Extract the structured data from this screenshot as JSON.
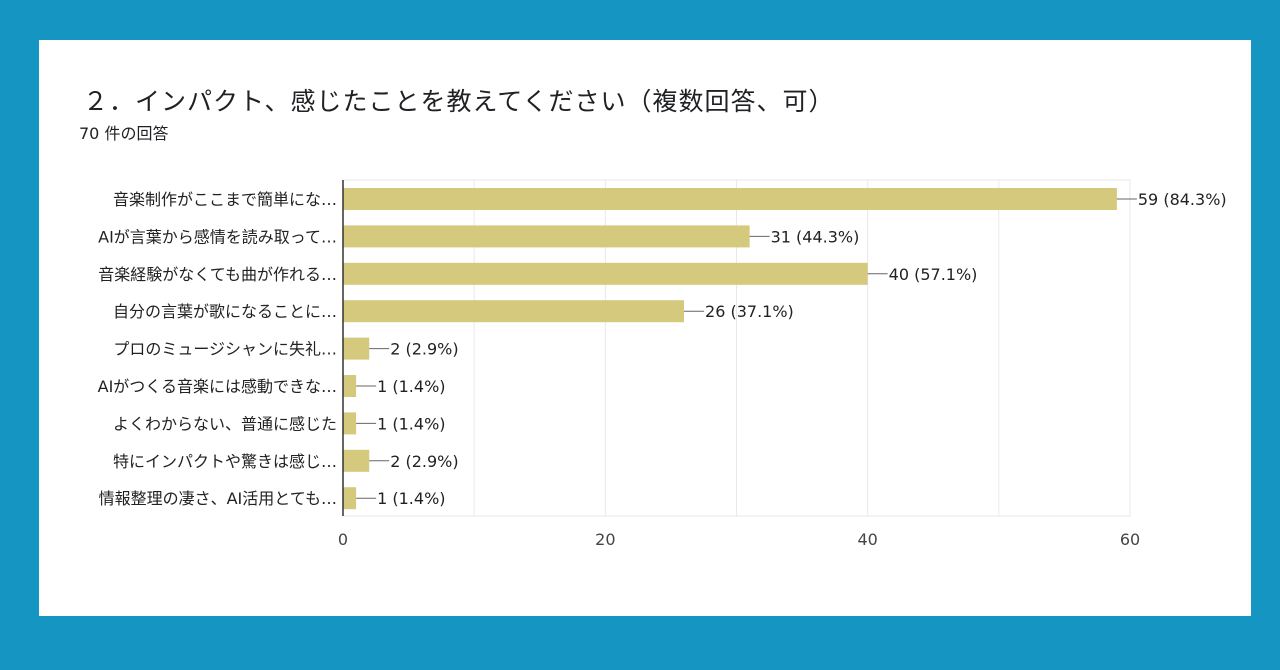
{
  "header": {
    "title": "２．インパクト、感じたことを教えてください（複数回答、可）",
    "response_count": "70 件の回答"
  },
  "colors": {
    "background": "#1595c1",
    "bar": "#d4c97c",
    "grid": "#e8e8e8",
    "axis": "#333333"
  },
  "chart_data": {
    "type": "bar",
    "orientation": "horizontal",
    "title": "２．インパクト、感じたことを教えてください（複数回答、可）",
    "categories": [
      "音楽制作がここまで簡単にな…",
      "AIが言葉から感情を読み取って…",
      "音楽経験がなくても曲が作れる…",
      "自分の言葉が歌になることに…",
      "プロのミュージシャンに失礼…",
      "AIがつくる音楽には感動できな…",
      "よくわからない、普通に感じた",
      "特にインパクトや驚きは感じ…",
      "情報整理の凄さ、AI活用とても…"
    ],
    "values": [
      59,
      31,
      40,
      26,
      2,
      1,
      1,
      2,
      1
    ],
    "data_labels": [
      "59 (84.3%)",
      "31 (44.3%)",
      "40 (57.1%)",
      "26 (37.1%)",
      "2 (2.9%)",
      "1 (1.4%)",
      "1 (1.4%)",
      "2 (2.9%)",
      "1 (1.4%)"
    ],
    "xlim": [
      0,
      60
    ],
    "xticks": [
      "0",
      "20",
      "40",
      "60"
    ],
    "grid": true,
    "xlabel": "",
    "ylabel": ""
  }
}
